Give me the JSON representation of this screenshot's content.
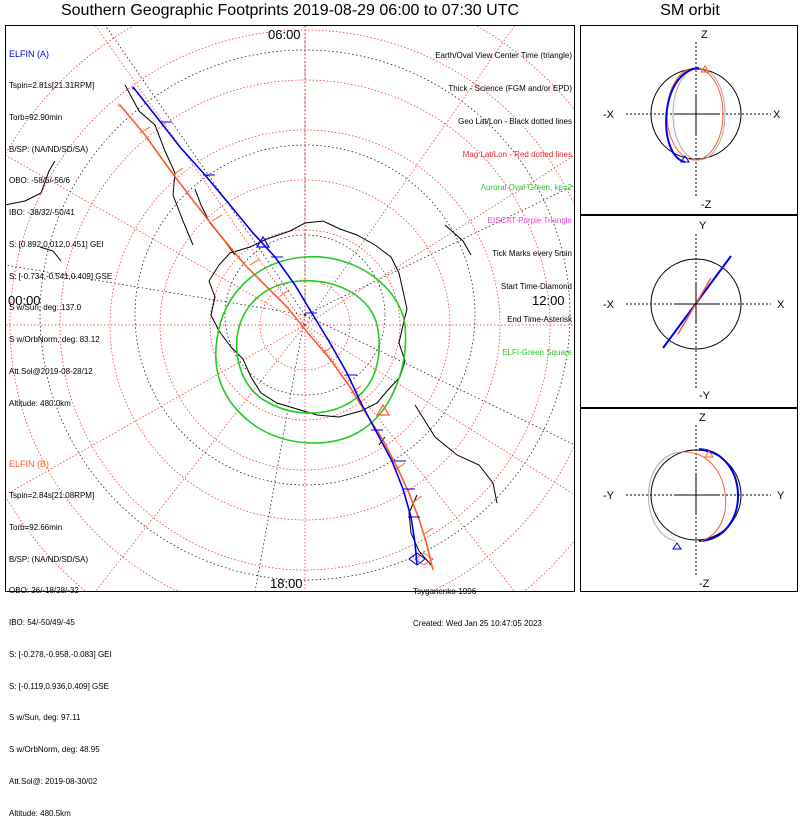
{
  "title": "Southern Geographic Footprints 2019-08-29 06:00 to 07:30 UTC",
  "orbit_panel_title": "SM orbit",
  "clock_labels": {
    "top": "06:00",
    "left": "00:00",
    "right": "12:00",
    "bottom": "18:00"
  },
  "colors": {
    "elfin_a": "#0000ee",
    "elfin_b": "#ff5a2a",
    "aurora": "#22cc22",
    "mag_grid": "#ee2222",
    "eiscat": "#dd44dd",
    "elfin_green": "#22cc22",
    "geo_grid": "#000000"
  },
  "elfin_a": {
    "label": "ELFIN (A)",
    "lines": [
      "Tspin=2.81s[21.31RPM]",
      "Torb=92.90min",
      "B/SP: (NA/ND/SD/SA)",
      "OBO: -58/5/-56/6",
      "IBO: -38/32/-50/41",
      "S: [0.892,0.012,0.451] GEI",
      "S: [-0.734,-0.541,0.409] GSE",
      "S w/Sun, deg: 137.0",
      "S w/OrbNorm, deg: 83.12",
      "Att.Sol@2019-08-28/12",
      "Altitude: 480.0km"
    ]
  },
  "elfin_b": {
    "label": "ELFIN (B)",
    "lines": [
      "Tspin=2.84s[21.08RPM]",
      "Torb=92.66min",
      "B/SP: (NA/ND/SD/SA)",
      "OBO: 26/-18/28/-32",
      "IBO: 54/-50/49/-45",
      "S: [-0.278,-0.958,-0.083] GEI",
      "S: [-0.119,0.936,0.409] GSE",
      "S w/Sun, deg: 97.11",
      "S w/OrbNorm, deg: 48.95",
      "Att.Sol@: 2019-08-30/02",
      "Altitude: 480.5km"
    ]
  },
  "legend": [
    "Earth/Oval View Center Time (triangle)",
    "Thick - Science (FGM and/or EPD)",
    "Geo Lat/Lon - Black dotted lines",
    "Mag Lat/Lon - Red dotted lines",
    "Auroral Oval-Green, kp=2",
    "EISCAT-Purple Triangle",
    "Tick Marks every 5min",
    "Start Time-Diamond",
    "End Time-Asterisk",
    "ELFI-Green Square"
  ],
  "credit": {
    "author": "Tsyganenko-1996",
    "created": "Created: Wed Jan 25 10:47:05 2023"
  },
  "orbit_panels": [
    {
      "up": "Z",
      "down": "-Z",
      "left": "-X",
      "right": "X"
    },
    {
      "up": "Y",
      "down": "-Y",
      "left": "-X",
      "right": "X"
    },
    {
      "up": "Z",
      "down": "-Z",
      "left": "-Y",
      "right": "Y"
    }
  ]
}
